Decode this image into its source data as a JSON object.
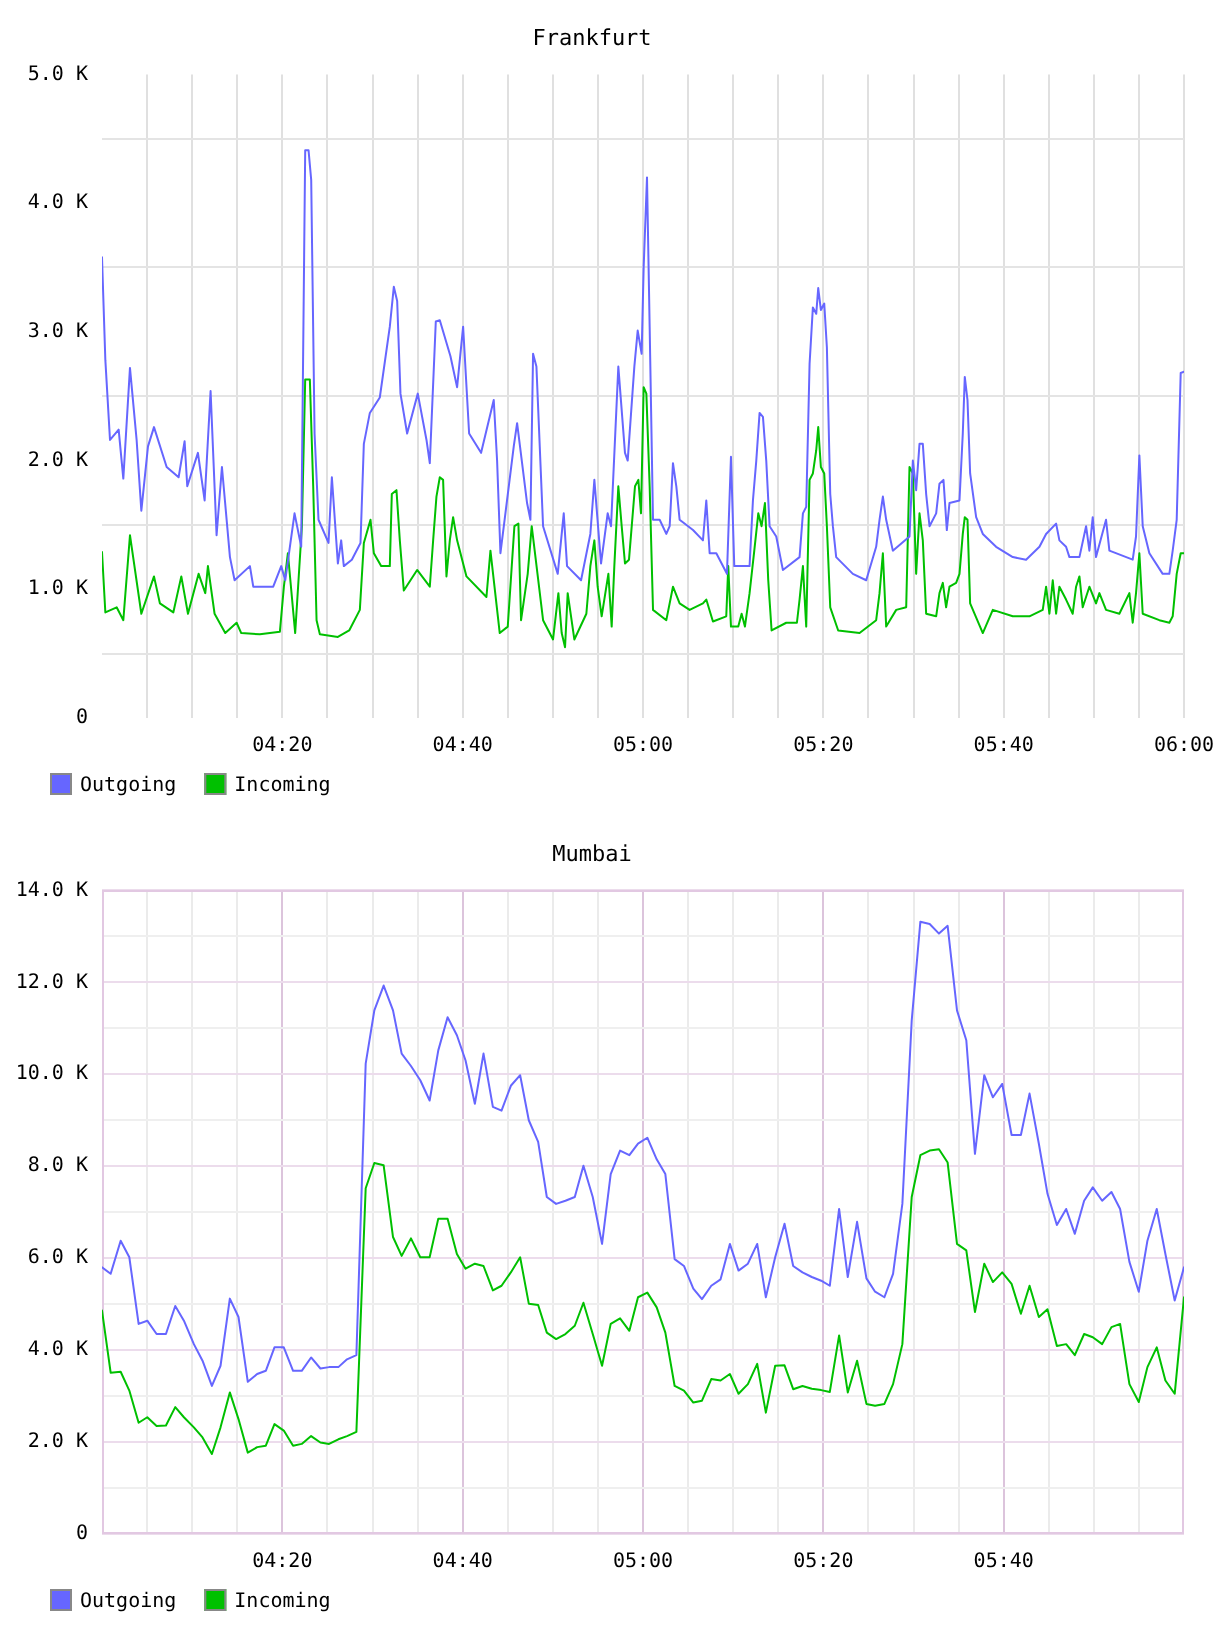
{
  "chart_data": [
    {
      "type": "line",
      "title": "Frankfurt",
      "xlim": [
        4,
        6
      ],
      "xticks": [
        {
          "value": 4.0833,
          "label": null
        },
        {
          "value": 4.1667,
          "label": null
        },
        {
          "value": 4.25,
          "label": null
        },
        {
          "value": 4.3333,
          "label": "04:20"
        },
        {
          "value": 4.4167,
          "label": null
        },
        {
          "value": 4.5,
          "label": null
        },
        {
          "value": 4.5833,
          "label": null
        },
        {
          "value": 4.6667,
          "label": "04:40"
        },
        {
          "value": 4.75,
          "label": null
        },
        {
          "value": 4.8333,
          "label": null
        },
        {
          "value": 4.9167,
          "label": null
        },
        {
          "value": 5,
          "label": "05:00"
        },
        {
          "value": 5.0833,
          "label": null
        },
        {
          "value": 5.1667,
          "label": null
        },
        {
          "value": 5.25,
          "label": null
        },
        {
          "value": 5.3333,
          "label": "05:20"
        },
        {
          "value": 5.4167,
          "label": null
        },
        {
          "value": 5.5,
          "label": null
        },
        {
          "value": 5.5833,
          "label": null
        },
        {
          "value": 5.6667,
          "label": "05:40"
        },
        {
          "value": 5.75,
          "label": null
        },
        {
          "value": 5.8333,
          "label": null
        },
        {
          "value": 5.9167,
          "label": null
        },
        {
          "value": 6,
          "label": "06:00"
        }
      ],
      "ylim": [
        0,
        5000
      ],
      "yticks": [
        0,
        {
          "value": 500,
          "label": null
        },
        {
          "value": 1000,
          "label": "1.0 K"
        },
        {
          "value": 1500,
          "label": null
        },
        {
          "value": 2000,
          "label": "2.0 K"
        },
        {
          "value": 2500,
          "label": null
        },
        {
          "value": 3000,
          "label": "3.0 K"
        },
        {
          "value": 3500,
          "label": null
        },
        {
          "value": 4000,
          "label": "4.0 K"
        },
        {
          "value": 4500,
          "label": null
        },
        {
          "value": 5000,
          "label": "5.0 K"
        }
      ],
      "grid": true,
      "legend": "bottom left",
      "series": [
        {
          "name": "Outgoing",
          "color": "#6666ff",
          "x": [
            4.0,
            4.0062,
            4.0148,
            4.0308,
            4.0394,
            4.0517,
            4.064,
            4.0727,
            4.085,
            4.0961,
            4.1195,
            4.1416,
            4.1527,
            4.1576,
            4.1773,
            4.1897,
            4.2007,
            4.2118,
            4.2217,
            4.2365,
            4.2451,
            4.2734,
            4.2796,
            4.3165,
            4.3313,
            4.3387,
            4.3559,
            4.3682,
            4.3756,
            4.3818,
            4.3867,
            4.3929,
            4.4002,
            4.4187,
            4.4249,
            4.436,
            4.4421,
            4.447,
            4.4618,
            4.4778,
            4.484,
            4.4951,
            4.5135,
            4.532,
            4.5394,
            4.5456,
            4.5517,
            4.564,
            4.5837,
            4.5998,
            4.6059,
            4.617,
            4.6244,
            4.6441,
            4.6564,
            4.6675,
            4.6786,
            4.7007,
            4.7241,
            4.7303,
            4.7365,
            4.7611,
            4.7673,
            4.7857,
            4.7919,
            4.7968,
            4.803,
            4.8153,
            4.8424,
            4.8535,
            4.8596,
            4.8855,
            4.9027,
            4.9101,
            4.9224,
            4.9347,
            4.9409,
            4.9544,
            4.9667,
            4.9717,
            4.984,
            4.9902,
            4.9975,
            5.0012,
            5.0074,
            5.0123,
            5.0185,
            5.0308,
            5.0431,
            5.0493,
            5.0554,
            5.0616,
            5.0677,
            5.0924,
            5.1108,
            5.117,
            5.1232,
            5.1355,
            5.1552,
            5.1626,
            5.1687,
            5.197,
            5.2032,
            5.2094,
            5.2155,
            5.2217,
            5.2278,
            5.234,
            5.2463,
            5.2586,
            5.2894,
            5.2956,
            5.3017,
            5.3079,
            5.314,
            5.3202,
            5.3239,
            5.3288,
            5.335,
            5.3399,
            5.3461,
            5.351,
            5.3571,
            5.3879,
            5.4126,
            5.431,
            5.4372,
            5.4434,
            5.4495,
            5.4618,
            5.4926,
            5.4988,
            5.5049,
            5.5111,
            5.5172,
            5.5234,
            5.5296,
            5.5419,
            5.548,
            5.5554,
            5.5616,
            5.5665,
            5.585,
            5.5911,
            5.5948,
            5.5998,
            5.6047,
            5.6158,
            5.6281,
            5.6527,
            5.6835,
            5.7081,
            5.7328,
            5.7451,
            5.7636,
            5.7697,
            5.782,
            5.7882,
            5.8067,
            5.819,
            5.8251,
            5.8313,
            5.8374,
            5.8559,
            5.8621,
            5.9052,
            5.9113,
            5.9175,
            5.9237,
            5.936,
            5.9606,
            5.9729,
            5.9791,
            5.9865,
            5.9939,
            6.0
          ],
          "values": [
            3580,
            2780,
            2160,
            2240,
            1860,
            2720,
            2160,
            1610,
            2110,
            2260,
            1950,
            1870,
            2150,
            1800,
            2060,
            1690,
            2540,
            1420,
            1950,
            1250,
            1070,
            1180,
            1020,
            1020,
            1180,
            1070,
            1590,
            1330,
            4410,
            4410,
            4180,
            2210,
            1540,
            1360,
            1870,
            1200,
            1380,
            1180,
            1230,
            1360,
            2130,
            2370,
            2490,
            3040,
            3350,
            3240,
            2520,
            2210,
            2520,
            2160,
            1980,
            3080,
            3090,
            2810,
            2570,
            3040,
            2210,
            2060,
            2470,
            2000,
            1280,
            2110,
            2290,
            1670,
            1540,
            2830,
            2730,
            1490,
            1120,
            1590,
            1180,
            1070,
            1430,
            1850,
            1200,
            1590,
            1490,
            2730,
            2060,
            2000,
            2730,
            3010,
            2830,
            3500,
            4200,
            3040,
            1540,
            1540,
            1430,
            1490,
            1980,
            1800,
            1540,
            1460,
            1380,
            1690,
            1280,
            1280,
            1120,
            2030,
            1180,
            1180,
            1690,
            2000,
            2370,
            2340,
            2000,
            1490,
            1410,
            1150,
            1250,
            1590,
            1640,
            2750,
            3190,
            3140,
            3340,
            3170,
            3220,
            2880,
            1740,
            1490,
            1250,
            1120,
            1070,
            1330,
            1540,
            1720,
            1540,
            1300,
            1410,
            2000,
            1770,
            2130,
            2130,
            1740,
            1490,
            1590,
            1820,
            1850,
            1460,
            1670,
            1690,
            2210,
            2650,
            2470,
            1900,
            1560,
            1430,
            1330,
            1250,
            1230,
            1330,
            1430,
            1510,
            1380,
            1330,
            1250,
            1250,
            1490,
            1300,
            1560,
            1250,
            1540,
            1300,
            1230,
            1410,
            2040,
            1490,
            1280,
            1120,
            1120,
            1300,
            1540,
            2680,
            2690
          ]
        },
        {
          "name": "Incoming",
          "color": "#00c000",
          "x": [
            4.0,
            4.0062,
            4.0271,
            4.0394,
            4.0517,
            4.0727,
            4.0961,
            4.1071,
            4.1318,
            4.1466,
            4.1589,
            4.1786,
            4.1909,
            4.1958,
            4.2081,
            4.2278,
            4.2488,
            4.2574,
            4.2919,
            4.3288,
            4.3362,
            4.3436,
            4.3571,
            4.3695,
            4.3756,
            4.3842,
            4.3904,
            4.3966,
            4.4027,
            4.436,
            4.4569,
            4.4766,
            4.484,
            4.4963,
            4.5025,
            4.516,
            4.532,
            4.5357,
            4.5443,
            4.5505,
            4.5579,
            4.5825,
            4.6059,
            4.6121,
            4.6182,
            4.6244,
            4.6305,
            4.6367,
            4.6429,
            4.649,
            4.6564,
            4.6737,
            4.7106,
            4.718,
            4.7352,
            4.75,
            4.7574,
            4.7623,
            4.7697,
            4.7746,
            4.7869,
            4.7943,
            4.8153,
            4.8337,
            4.8436,
            4.8497,
            4.8559,
            4.8608,
            4.8731,
            4.8953,
            4.9027,
            4.9101,
            4.9162,
            4.9236,
            4.936,
            4.9421,
            4.947,
            4.9544,
            4.9606,
            4.9667,
            4.9741,
            4.9852,
            4.9914,
            4.9963,
            5.0012,
            5.0062,
            5.0123,
            5.0185,
            5.0431,
            5.0554,
            5.0677,
            5.0862,
            5.1108,
            5.117,
            5.1293,
            5.1539,
            5.1576,
            5.1626,
            5.1761,
            5.1823,
            5.1884,
            5.197,
            5.2057,
            5.2131,
            5.2192,
            5.2254,
            5.2315,
            5.2377,
            5.2648,
            5.2845,
            5.2894,
            5.2956,
            5.3017,
            5.3079,
            5.314,
            5.3202,
            5.3239,
            5.3288,
            5.335,
            5.3399,
            5.3461,
            5.3608,
            5.4003,
            5.431,
            5.4372,
            5.4434,
            5.4495,
            5.468,
            5.4865,
            5.4926,
            5.4988,
            5.5049,
            5.5111,
            5.5172,
            5.5234,
            5.5419,
            5.548,
            5.5542,
            5.5603,
            5.5665,
            5.5788,
            5.585,
            5.5911,
            5.5948,
            5.5998,
            5.6047,
            5.6281,
            5.6466,
            5.6835,
            5.7143,
            5.7389,
            5.7451,
            5.7512,
            5.7574,
            5.7636,
            5.7697,
            5.782,
            5.7943,
            5.8005,
            5.8067,
            5.8128,
            5.8251,
            5.8374,
            5.8436,
            5.8559,
            5.8805,
            5.899,
            5.9052,
            5.9113,
            5.9175,
            5.9237,
            5.9544,
            5.9729,
            5.9791,
            5.9865,
            5.9939,
            6.0
          ],
          "values": [
            1290,
            820,
            860,
            760,
            1420,
            810,
            1100,
            890,
            820,
            1100,
            810,
            1120,
            970,
            1180,
            810,
            660,
            740,
            660,
            650,
            670,
            1020,
            1280,
            660,
            1490,
            2630,
            2630,
            1800,
            760,
            650,
            630,
            680,
            840,
            1360,
            1540,
            1280,
            1180,
            1180,
            1740,
            1770,
            1380,
            990,
            1150,
            1020,
            1380,
            1720,
            1870,
            1850,
            1100,
            1380,
            1560,
            1380,
            1100,
            940,
            1300,
            660,
            710,
            1180,
            1490,
            1510,
            760,
            1120,
            1490,
            760,
            610,
            970,
            660,
            550,
            970,
            610,
            810,
            1180,
            1380,
            1020,
            790,
            1120,
            710,
            1180,
            1800,
            1490,
            1200,
            1230,
            1800,
            1850,
            1590,
            2570,
            2520,
            1800,
            840,
            760,
            1020,
            890,
            840,
            890,
            920,
            750,
            790,
            1180,
            710,
            710,
            810,
            710,
            970,
            1300,
            1590,
            1490,
            1670,
            1070,
            680,
            740,
            740,
            920,
            1180,
            710,
            1850,
            1900,
            2080,
            2260,
            1950,
            1900,
            1490,
            860,
            680,
            660,
            760,
            970,
            1280,
            710,
            840,
            860,
            1950,
            1900,
            1120,
            1590,
            1380,
            810,
            790,
            970,
            1050,
            860,
            1020,
            1050,
            1120,
            1430,
            1560,
            1540,
            890,
            660,
            840,
            790,
            790,
            840,
            1020,
            810,
            1070,
            810,
            1020,
            920,
            810,
            1020,
            1100,
            860,
            1020,
            890,
            970,
            840,
            810,
            970,
            740,
            970,
            1280,
            810,
            760,
            740,
            790,
            1120,
            1280,
            1280
          ]
        }
      ]
    },
    {
      "type": "line",
      "title": "Mumbai",
      "xlim": [
        4,
        6
      ],
      "xticks": [
        {
          "value": 4.0833,
          "label": null
        },
        {
          "value": 4.1667,
          "label": null
        },
        {
          "value": 4.25,
          "label": null
        },
        {
          "value": 4.3333,
          "label": "04:20"
        },
        {
          "value": 4.4167,
          "label": null
        },
        {
          "value": 4.5,
          "label": null
        },
        {
          "value": 4.5833,
          "label": null
        },
        {
          "value": 4.6667,
          "label": "04:40"
        },
        {
          "value": 4.75,
          "label": null
        },
        {
          "value": 4.8333,
          "label": null
        },
        {
          "value": 4.9167,
          "label": null
        },
        {
          "value": 5,
          "label": "05:00"
        },
        {
          "value": 5.0833,
          "label": null
        },
        {
          "value": 5.1667,
          "label": null
        },
        {
          "value": 5.25,
          "label": null
        },
        {
          "value": 5.3333,
          "label": "05:20"
        },
        {
          "value": 5.4167,
          "label": null
        },
        {
          "value": 5.5,
          "label": null
        },
        {
          "value": 5.5833,
          "label": null
        },
        {
          "value": 5.6667,
          "label": "05:40"
        },
        {
          "value": 5.75,
          "label": null
        },
        {
          "value": 5.8333,
          "label": null
        },
        {
          "value": 5.9167,
          "label": null
        }
      ],
      "ylim": [
        0,
        14000
      ],
      "yticks": [
        0,
        {
          "value": 1000,
          "label": null
        },
        {
          "value": 2000,
          "label": "2.0 K"
        },
        {
          "value": 3000,
          "label": null
        },
        {
          "value": 4000,
          "label": "4.0 K"
        },
        {
          "value": 5000,
          "label": null
        },
        {
          "value": 6000,
          "label": "6.0 K"
        },
        {
          "value": 7000,
          "label": null
        },
        {
          "value": 8000,
          "label": "8.0 K"
        },
        {
          "value": 9000,
          "label": null
        },
        {
          "value": 10000,
          "label": "10.0 K"
        },
        {
          "value": 11000,
          "label": null
        },
        {
          "value": 12000,
          "label": "12.0 K"
        },
        {
          "value": 13000,
          "label": null
        },
        {
          "value": 14000,
          "label": "14.0 K"
        }
      ],
      "grid": true,
      "legend": "bottom left",
      "x": [
        4.0,
        4.016,
        4.0345,
        4.0505,
        4.0677,
        4.0837,
        4.1009,
        4.1182,
        4.1354,
        4.1514,
        4.1698,
        4.1858,
        4.2031,
        4.2191,
        4.2363,
        4.2523,
        4.2695,
        4.2868,
        4.3028,
        4.3188,
        4.336,
        4.3532,
        4.3692,
        4.3865,
        4.4037,
        4.4197,
        4.4369,
        4.4529,
        4.4702,
        4.4874,
        4.5034,
        4.5206,
        4.5379,
        4.5539,
        4.5711,
        4.5883,
        4.6056,
        4.6216,
        4.6388,
        4.656,
        4.672,
        4.6892,
        4.7052,
        4.7225,
        4.7385,
        4.7557,
        4.7729,
        4.7889,
        4.8062,
        4.8222,
        4.8394,
        4.8566,
        4.8739,
        4.8899,
        4.9071,
        4.9243,
        4.9403,
        4.9576,
        4.9748,
        4.9908,
        5.008,
        5.0253,
        5.0413,
        5.0585,
        5.0757,
        5.093,
        5.109,
        5.1262,
        5.1434,
        5.1606,
        5.1766,
        5.1939,
        5.2111,
        5.2271,
        5.2443,
        5.2616,
        5.2776,
        5.2948,
        5.312,
        5.3293,
        5.3453,
        5.3625,
        5.3785,
        5.3957,
        5.413,
        5.429,
        5.4462,
        5.4622,
        5.4794,
        5.4967,
        5.5127,
        5.5299,
        5.5471,
        5.5631,
        5.5804,
        5.5976,
        5.6136,
        5.6308,
        5.6468,
        5.664,
        5.6813,
        5.6985,
        5.7145,
        5.7317,
        5.7477,
        5.765,
        5.7822,
        5.7982,
        5.8154,
        5.8314,
        5.8487,
        5.8659,
        5.8819,
        5.8991,
        5.9164,
        5.9324,
        5.9496,
        5.9656,
        5.9828,
        6.0
      ],
      "series": [
        {
          "name": "Outgoing",
          "color": "#6666ff",
          "values": [
            5800,
            5660,
            6380,
            6020,
            4570,
            4640,
            4350,
            4350,
            4960,
            4640,
            4130,
            3770,
            3220,
            3660,
            5120,
            4720,
            3310,
            3480,
            3550,
            4060,
            4060,
            3550,
            3550,
            3840,
            3600,
            3630,
            3630,
            3800,
            3890,
            10230,
            11390,
            11930,
            11390,
            10450,
            10180,
            9870,
            9430,
            10520,
            11240,
            10850,
            10300,
            9360,
            10450,
            9290,
            9210,
            9750,
            9980,
            9000,
            8530,
            7330,
            7180,
            7250,
            7330,
            8010,
            7330,
            6310,
            7830,
            8340,
            8240,
            8490,
            8620,
            8150,
            7830,
            5980,
            5830,
            5340,
            5110,
            5400,
            5540,
            6310,
            5730,
            5880,
            6310,
            5150,
            6020,
            6750,
            5830,
            5690,
            5590,
            5510,
            5400,
            7070,
            5590,
            6790,
            5560,
            5270,
            5150,
            5660,
            7180,
            11170,
            13320,
            13270,
            13060,
            13230,
            11390,
            10740,
            8270,
            9980,
            9500,
            9790,
            8680,
            8680,
            9580,
            8490,
            7400,
            6720,
            7070,
            6530,
            7250,
            7540,
            7250,
            7440,
            7070,
            5920,
            5270,
            6380,
            7070,
            6090,
            5080,
            5800
          ]
        },
        {
          "name": "Incoming",
          "color": "#00c000",
          "values": [
            4860,
            3510,
            3530,
            3120,
            2420,
            2540,
            2350,
            2360,
            2760,
            2540,
            2320,
            2100,
            1740,
            2320,
            3080,
            2500,
            1770,
            1890,
            1920,
            2390,
            2250,
            1920,
            1960,
            2130,
            1990,
            1960,
            2060,
            2130,
            2220,
            7520,
            8070,
            8020,
            6460,
            6050,
            6430,
            6020,
            6020,
            6860,
            6860,
            6090,
            5770,
            5880,
            5830,
            5300,
            5400,
            5690,
            6020,
            5010,
            4980,
            4380,
            4240,
            4350,
            4530,
            5030,
            4350,
            3660,
            4570,
            4690,
            4420,
            5150,
            5250,
            4930,
            4380,
            3220,
            3120,
            2860,
            2900,
            3370,
            3340,
            3480,
            3050,
            3260,
            3700,
            2640,
            3660,
            3670,
            3150,
            3220,
            3160,
            3130,
            3090,
            4320,
            3080,
            3770,
            2830,
            2790,
            2830,
            3260,
            4130,
            7330,
            8240,
            8340,
            8370,
            8080,
            6310,
            6170,
            4830,
            5880,
            5480,
            5690,
            5440,
            4790,
            5400,
            4720,
            4890,
            4090,
            4130,
            3890,
            4350,
            4280,
            4130,
            4500,
            4570,
            3260,
            2870,
            3630,
            4060,
            3340,
            3050,
            5150
          ]
        }
      ]
    }
  ]
}
